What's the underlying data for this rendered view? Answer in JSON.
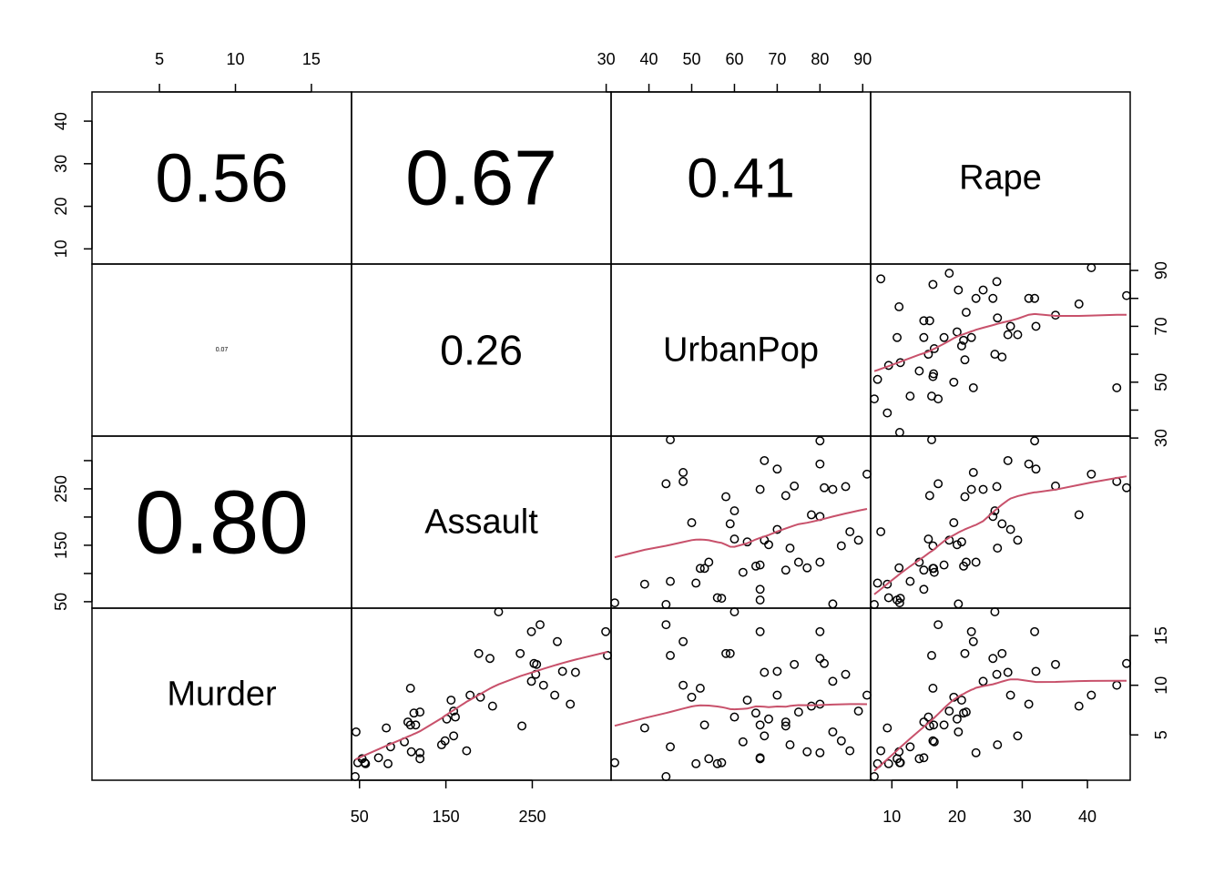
{
  "chart_data": {
    "type": "scatter",
    "variables": [
      "Murder",
      "Assault",
      "UrbanPop",
      "Rape"
    ],
    "correlations": [
      {
        "row": "Rape",
        "col": "Murder",
        "label": "0.56",
        "value": 0.56
      },
      {
        "row": "Rape",
        "col": "Assault",
        "label": "0.67",
        "value": 0.67
      },
      {
        "row": "Rape",
        "col": "UrbanPop",
        "label": "0.41",
        "value": 0.41
      },
      {
        "row": "UrbanPop",
        "col": "Murder",
        "label": "0.07",
        "value": 0.07
      },
      {
        "row": "UrbanPop",
        "col": "Assault",
        "label": "0.26",
        "value": 0.26
      },
      {
        "row": "Assault",
        "col": "Murder",
        "label": "0.80",
        "value": 0.8
      }
    ],
    "ranges": {
      "Murder": [
        0.8,
        17.4
      ],
      "Assault": [
        45,
        337
      ],
      "UrbanPop": [
        32,
        91
      ],
      "Rape": [
        7.3,
        46
      ]
    },
    "ticks": {
      "top": {
        "Murder": [
          "5",
          "10",
          "15"
        ],
        "UrbanPop": [
          "30",
          "40",
          "50",
          "60",
          "70",
          "80",
          "90"
        ]
      },
      "bottom": {
        "Assault": [
          "50",
          "150",
          "250"
        ],
        "Rape": [
          "10",
          "20",
          "30",
          "40"
        ]
      },
      "left": {
        "Rape": [
          "10",
          "20",
          "30",
          "40"
        ],
        "Assault": [
          "50",
          "150",
          "250"
        ]
      },
      "right": {
        "UrbanPop": [
          "30",
          "50",
          "70",
          "90"
        ],
        "Murder": [
          "5",
          "10",
          "15"
        ]
      }
    },
    "grid": false,
    "smoother_color": "#c8516b",
    "point_color": "#000000",
    "data": {
      "Murder": [
        13.2,
        10.0,
        8.1,
        8.8,
        9.0,
        7.9,
        3.3,
        5.9,
        15.4,
        17.4,
        5.3,
        2.6,
        10.4,
        7.2,
        2.2,
        6.0,
        9.7,
        15.4,
        2.1,
        11.3,
        4.4,
        12.1,
        2.7,
        16.1,
        9.0,
        6.0,
        4.3,
        12.2,
        2.1,
        7.4,
        11.4,
        11.1,
        13.0,
        0.8,
        7.3,
        6.6,
        4.9,
        6.3,
        3.4,
        14.4,
        3.8,
        13.2,
        12.7,
        3.2,
        2.2,
        8.5,
        4.0,
        5.7,
        2.6,
        6.8
      ],
      "Assault": [
        236,
        263,
        294,
        190,
        276,
        204,
        110,
        238,
        335,
        211,
        46,
        120,
        249,
        113,
        56,
        115,
        109,
        249,
        83,
        300,
        149,
        255,
        72,
        259,
        178,
        109,
        102,
        252,
        57,
        159,
        285,
        254,
        337,
        45,
        120,
        151,
        159,
        106,
        174,
        279,
        86,
        188,
        201,
        120,
        48,
        156,
        145,
        81,
        53,
        161
      ],
      "UrbanPop": [
        58,
        48,
        80,
        50,
        91,
        78,
        77,
        72,
        80,
        60,
        83,
        54,
        83,
        65,
        57,
        66,
        52,
        66,
        51,
        67,
        85,
        74,
        66,
        44,
        70,
        53,
        62,
        81,
        56,
        89,
        70,
        86,
        45,
        44,
        75,
        68,
        67,
        72,
        87,
        48,
        45,
        59,
        80,
        80,
        32,
        63,
        73,
        39,
        66,
        60
      ],
      "Rape": [
        21.2,
        44.5,
        31.0,
        19.5,
        40.6,
        38.7,
        11.1,
        15.8,
        31.9,
        25.8,
        20.2,
        14.2,
        24.0,
        21.0,
        11.3,
        18.0,
        16.3,
        22.2,
        7.8,
        27.8,
        16.3,
        35.1,
        14.9,
        17.1,
        28.2,
        16.4,
        16.5,
        46.0,
        9.5,
        18.8,
        32.1,
        26.1,
        16.1,
        7.3,
        21.4,
        20.0,
        29.3,
        14.9,
        8.3,
        22.5,
        12.8,
        26.9,
        25.5,
        22.9,
        11.2,
        20.7,
        26.2,
        9.3,
        10.8,
        15.6
      ]
    }
  }
}
